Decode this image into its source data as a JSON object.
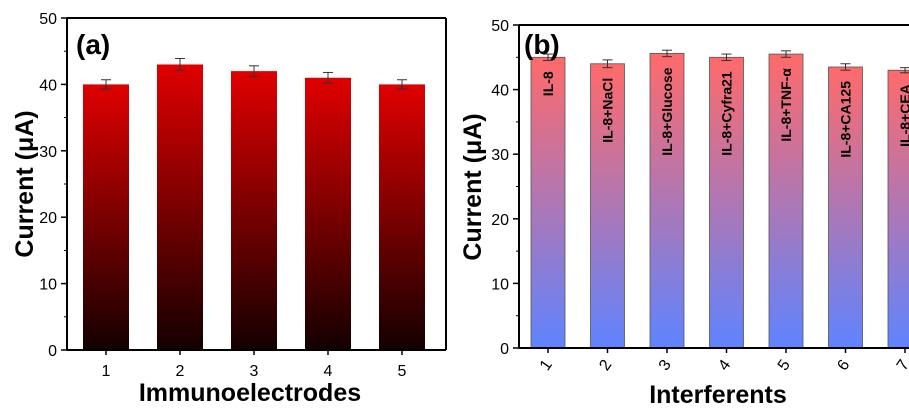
{
  "chart_data": [
    {
      "type": "bar",
      "panel_label": "(a)",
      "categories": [
        "1",
        "2",
        "3",
        "4",
        "5"
      ],
      "values": [
        40,
        43,
        42,
        41,
        40
      ],
      "errors": [
        0.7,
        0.9,
        0.8,
        0.8,
        0.7
      ],
      "xlabel": "Immunoelectrodes",
      "ylabel": "Current (μA)",
      "ylim": [
        0,
        50
      ],
      "yticks": [
        "0",
        "10",
        "20",
        "30",
        "40",
        "50"
      ],
      "fill": "vertical gradient black to red",
      "colors": {
        "top": "#e00000",
        "bottom": "#140000"
      },
      "grid": false
    },
    {
      "type": "bar",
      "panel_label": "(b)",
      "categories": [
        "1",
        "2",
        "3",
        "4",
        "5",
        "6",
        "7"
      ],
      "values": [
        45,
        44,
        45.6,
        45,
        45.5,
        43.5,
        43
      ],
      "errors": [
        0.5,
        0.6,
        0.5,
        0.5,
        0.5,
        0.5,
        0.4
      ],
      "bar_labels": [
        "IL-8",
        "IL-8+NaCl",
        "IL-8+Glucose",
        "IL-8+Cyfra21",
        "IL-8+TNF-α",
        "IL-8+CA125",
        "IL-8+CEA"
      ],
      "xlabel": "Interferents",
      "ylabel": "Current (μA)",
      "ylim": [
        0,
        50
      ],
      "yticks": [
        "0",
        "10",
        "20",
        "30",
        "40",
        "50"
      ],
      "fill": "vertical gradient blue to red",
      "colors": {
        "top": "#ff6a6a",
        "bottom": "#5e84ff"
      },
      "grid": false
    }
  ]
}
